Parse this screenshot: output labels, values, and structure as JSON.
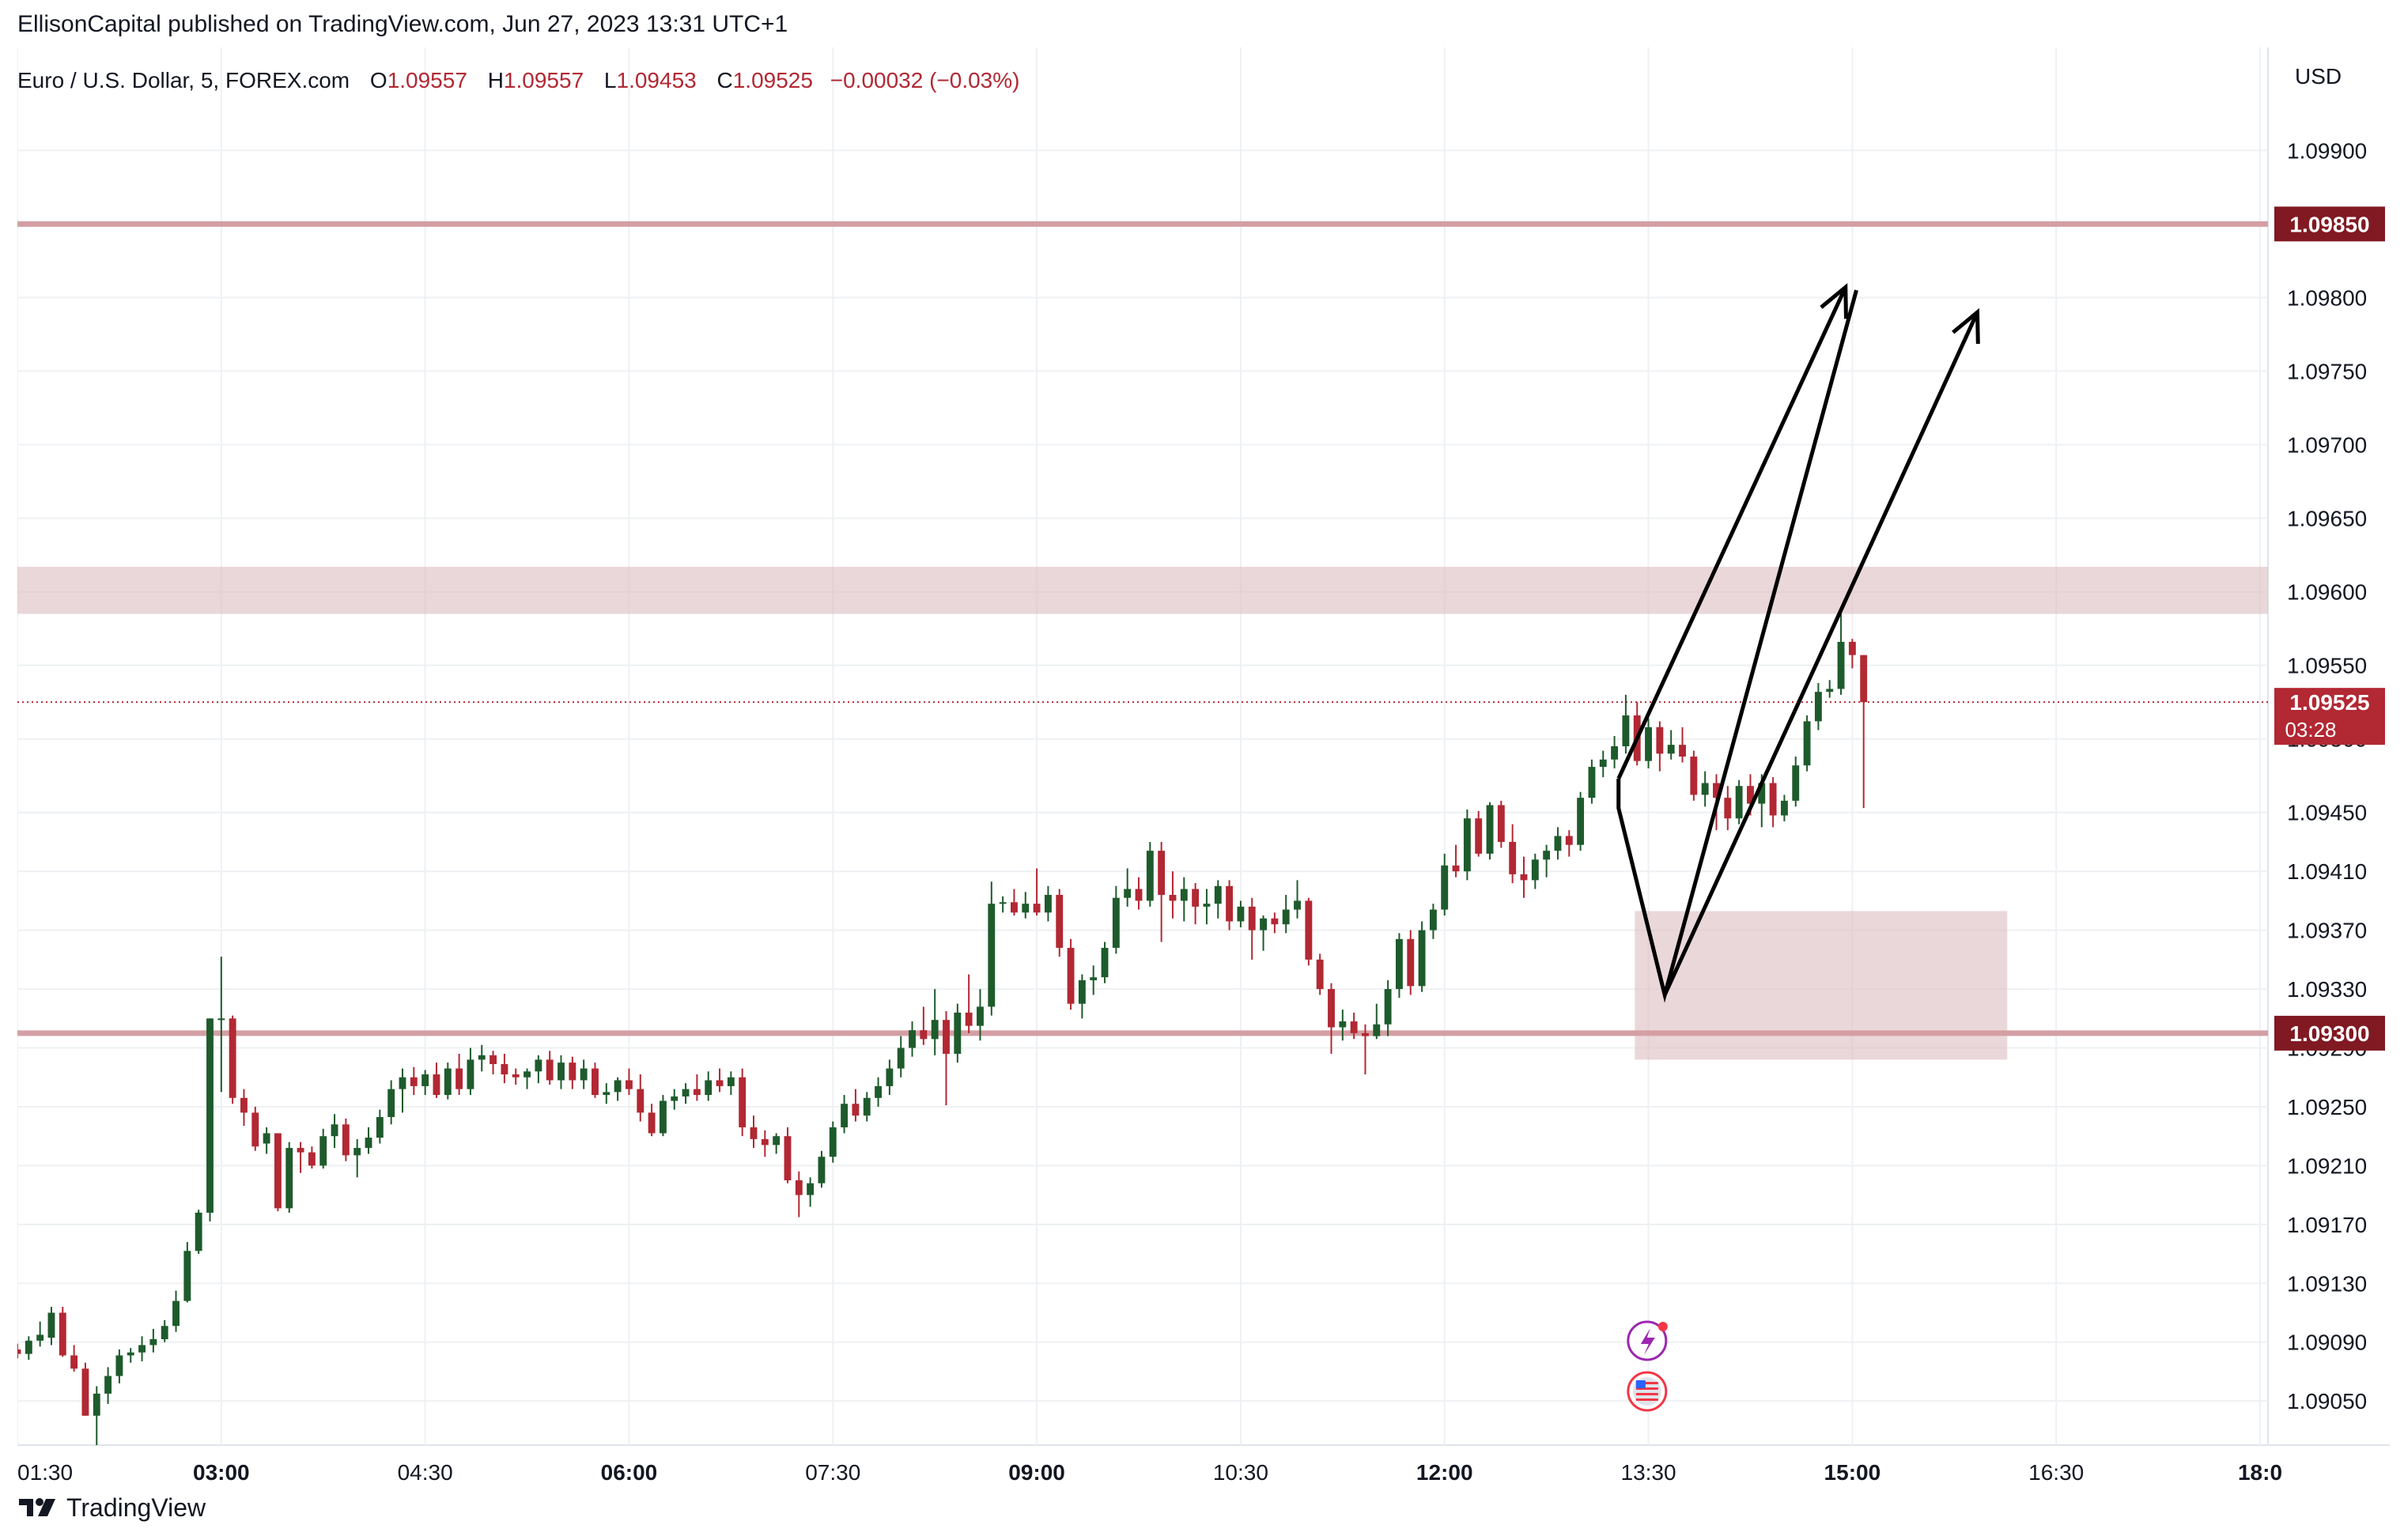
{
  "header": {
    "published_line": "EllisonCapital published on TradingView.com, Jun 27, 2023 13:31 UTC+1"
  },
  "legend": {
    "symbol": "Euro / U.S. Dollar, 5, FOREX.com",
    "o_label": "O",
    "o_value": "1.09557",
    "h_label": "H",
    "h_value": "1.09557",
    "l_label": "L",
    "l_value": "1.09453",
    "c_label": "C",
    "c_value": "1.09525",
    "change": "−0.00032 (−0.03%)"
  },
  "footer": {
    "brand": "TradingView"
  },
  "colors": {
    "up": "#1e5b2c",
    "down": "#b22833",
    "level_line": "#d49fa4",
    "zone_fill": "#dcbcc0",
    "price_tag": "#801922",
    "last_price_tag": "#b22833",
    "grid": "#eef0f3",
    "axis_text": "#131722"
  },
  "chart_data": {
    "type": "candlestick",
    "symbol": "Euro / U.S. Dollar",
    "timeframe": "5",
    "currency_label": "USD",
    "ylim": [
      1.0902,
      1.0997
    ],
    "y_ticks": [
      "1.09050",
      "1.09090",
      "1.09130",
      "1.09170",
      "1.09210",
      "1.09250",
      "1.09290",
      "1.09330",
      "1.09370",
      "1.09410",
      "1.09450",
      "1.09500",
      "1.09550",
      "1.09600",
      "1.09650",
      "1.09700",
      "1.09750",
      "1.09800",
      "1.09850",
      "1.09900"
    ],
    "x_ticks": [
      {
        "label": "01:30",
        "t": 1.5,
        "bold": false
      },
      {
        "label": "03:00",
        "t": 3.0,
        "bold": true
      },
      {
        "label": "04:30",
        "t": 4.5,
        "bold": false
      },
      {
        "label": "06:00",
        "t": 6.0,
        "bold": true
      },
      {
        "label": "07:30",
        "t": 7.5,
        "bold": false
      },
      {
        "label": "09:00",
        "t": 9.0,
        "bold": true
      },
      {
        "label": "10:30",
        "t": 10.5,
        "bold": false
      },
      {
        "label": "12:00",
        "t": 12.0,
        "bold": true
      },
      {
        "label": "13:30",
        "t": 13.5,
        "bold": false
      },
      {
        "label": "15:00",
        "t": 15.0,
        "bold": true
      },
      {
        "label": "16:30",
        "t": 16.5,
        "bold": false
      },
      {
        "label": "18:0",
        "t": 18.0,
        "bold": true
      }
    ],
    "x_range_hours": [
      1.5,
      18.0
    ],
    "candle_start_hour": 1.5,
    "candle_interval_minutes": 5,
    "candles": [
      [
        1.09085,
        1.09089,
        1.09079,
        1.09082
      ],
      [
        1.09082,
        1.09094,
        1.09078,
        1.09091
      ],
      [
        1.09091,
        1.09104,
        1.09087,
        1.09095
      ],
      [
        1.09093,
        1.09114,
        1.09088,
        1.0911
      ],
      [
        1.0911,
        1.09114,
        1.0908,
        1.09081
      ],
      [
        1.09081,
        1.09088,
        1.0907,
        1.09072
      ],
      [
        1.09072,
        1.09076,
        1.0904,
        1.0904
      ],
      [
        1.0904,
        1.0906,
        1.0902,
        1.09055
      ],
      [
        1.09055,
        1.09073,
        1.09048,
        1.09067
      ],
      [
        1.09067,
        1.09085,
        1.09062,
        1.09081
      ],
      [
        1.09081,
        1.09086,
        1.09076,
        1.09083
      ],
      [
        1.09083,
        1.09094,
        1.09077,
        1.09088
      ],
      [
        1.09088,
        1.09099,
        1.09083,
        1.09092
      ],
      [
        1.09092,
        1.09105,
        1.0909,
        1.09101
      ],
      [
        1.09101,
        1.09125,
        1.09097,
        1.09118
      ],
      [
        1.09118,
        1.09158,
        1.09117,
        1.09152
      ],
      [
        1.09152,
        1.0918,
        1.0915,
        1.09178
      ],
      [
        1.09178,
        1.0931,
        1.09172,
        1.0931
      ],
      [
        1.0931,
        1.09352,
        1.0926,
        1.0931
      ],
      [
        1.0931,
        1.09312,
        1.09252,
        1.09256
      ],
      [
        1.09256,
        1.09262,
        1.09237,
        1.09246
      ],
      [
        1.09246,
        1.0925,
        1.0922,
        1.09223
      ],
      [
        1.09225,
        1.09236,
        1.09218,
        1.09232
      ],
      [
        1.09232,
        1.09232,
        1.09179,
        1.09181
      ],
      [
        1.09181,
        1.09226,
        1.09178,
        1.09222
      ],
      [
        1.09222,
        1.09226,
        1.09205,
        1.09219
      ],
      [
        1.09219,
        1.09223,
        1.09208,
        1.0921
      ],
      [
        1.0921,
        1.09235,
        1.09208,
        1.0923
      ],
      [
        1.0923,
        1.09245,
        1.09222,
        1.09238
      ],
      [
        1.09238,
        1.09242,
        1.09213,
        1.09217
      ],
      [
        1.09217,
        1.09228,
        1.09202,
        1.09222
      ],
      [
        1.09222,
        1.09236,
        1.09218,
        1.09229
      ],
      [
        1.09229,
        1.09248,
        1.09225,
        1.09243
      ],
      [
        1.09243,
        1.09268,
        1.09238,
        1.09262
      ],
      [
        1.09262,
        1.09276,
        1.09246,
        1.0927
      ],
      [
        1.0927,
        1.09277,
        1.09258,
        1.09264
      ],
      [
        1.09264,
        1.09275,
        1.09258,
        1.09272
      ],
      [
        1.09272,
        1.0928,
        1.09256,
        1.09258
      ],
      [
        1.09258,
        1.0928,
        1.09255,
        1.09276
      ],
      [
        1.09276,
        1.09286,
        1.09258,
        1.09262
      ],
      [
        1.09262,
        1.0929,
        1.09258,
        1.09282
      ],
      [
        1.09282,
        1.09292,
        1.09274,
        1.09285
      ],
      [
        1.09285,
        1.09288,
        1.09272,
        1.09279
      ],
      [
        1.09279,
        1.09286,
        1.09266,
        1.09272
      ],
      [
        1.09272,
        1.09276,
        1.09265,
        1.0927
      ],
      [
        1.0927,
        1.09276,
        1.09262,
        1.09274
      ],
      [
        1.09274,
        1.09285,
        1.09266,
        1.09282
      ],
      [
        1.09282,
        1.09288,
        1.09265,
        1.09268
      ],
      [
        1.09268,
        1.09285,
        1.09262,
        1.0928
      ],
      [
        1.0928,
        1.09284,
        1.09262,
        1.09268
      ],
      [
        1.09268,
        1.09282,
        1.09262,
        1.09276
      ],
      [
        1.09276,
        1.0928,
        1.09256,
        1.09258
      ],
      [
        1.09258,
        1.09266,
        1.09252,
        1.0926
      ],
      [
        1.0926,
        1.0927,
        1.09254,
        1.09268
      ],
      [
        1.09268,
        1.09276,
        1.09258,
        1.09262
      ],
      [
        1.09262,
        1.09272,
        1.0924,
        1.09246
      ],
      [
        1.09246,
        1.09252,
        1.0923,
        1.09232
      ],
      [
        1.09232,
        1.09258,
        1.0923,
        1.09254
      ],
      [
        1.09254,
        1.09262,
        1.09248,
        1.09257
      ],
      [
        1.09257,
        1.09266,
        1.09252,
        1.09262
      ],
      [
        1.09262,
        1.09272,
        1.09254,
        1.09258
      ],
      [
        1.09258,
        1.09274,
        1.09254,
        1.09268
      ],
      [
        1.09268,
        1.09276,
        1.0926,
        1.09264
      ],
      [
        1.09264,
        1.09274,
        1.09258,
        1.0927
      ],
      [
        1.0927,
        1.09276,
        1.0923,
        1.09236
      ],
      [
        1.09236,
        1.09244,
        1.09222,
        1.09228
      ],
      [
        1.09228,
        1.09234,
        1.09216,
        1.09224
      ],
      [
        1.09224,
        1.09232,
        1.09218,
        1.0923
      ],
      [
        1.0923,
        1.09236,
        1.09198,
        1.092
      ],
      [
        1.092,
        1.09206,
        1.09175,
        1.0919
      ],
      [
        1.0919,
        1.09202,
        1.09182,
        1.09198
      ],
      [
        1.09198,
        1.0922,
        1.09195,
        1.09216
      ],
      [
        1.09216,
        1.0924,
        1.09212,
        1.09236
      ],
      [
        1.09236,
        1.09258,
        1.09232,
        1.09252
      ],
      [
        1.09252,
        1.09262,
        1.0924,
        1.09244
      ],
      [
        1.09244,
        1.0926,
        1.0924,
        1.09256
      ],
      [
        1.09256,
        1.0927,
        1.0925,
        1.09264
      ],
      [
        1.09264,
        1.09282,
        1.09258,
        1.09276
      ],
      [
        1.09276,
        1.09298,
        1.0927,
        1.0929
      ],
      [
        1.0929,
        1.09308,
        1.09284,
        1.09302
      ],
      [
        1.09302,
        1.09318,
        1.09292,
        1.09296
      ],
      [
        1.09296,
        1.0933,
        1.09285,
        1.09309
      ],
      [
        1.09309,
        1.09315,
        1.09251,
        1.09286
      ],
      [
        1.09286,
        1.0932,
        1.0928,
        1.09314
      ],
      [
        1.09314,
        1.0934,
        1.093,
        1.09305
      ],
      [
        1.09305,
        1.0933,
        1.09295,
        1.09318
      ],
      [
        1.09318,
        1.09403,
        1.09312,
        1.09388
      ],
      [
        1.09388,
        1.09393,
        1.09382,
        1.09389
      ],
      [
        1.09389,
        1.09398,
        1.0938,
        1.09382
      ],
      [
        1.09382,
        1.09396,
        1.09378,
        1.09388
      ],
      [
        1.09388,
        1.09412,
        1.0938,
        1.09382
      ],
      [
        1.09382,
        1.094,
        1.09376,
        1.09394
      ],
      [
        1.09394,
        1.09398,
        1.09352,
        1.09358
      ],
      [
        1.09358,
        1.09364,
        1.09316,
        1.0932
      ],
      [
        1.0932,
        1.0934,
        1.0931,
        1.09336
      ],
      [
        1.09336,
        1.09346,
        1.09326,
        1.09338
      ],
      [
        1.09338,
        1.09362,
        1.09334,
        1.09358
      ],
      [
        1.09358,
        1.094,
        1.09354,
        1.09392
      ],
      [
        1.09392,
        1.09412,
        1.09386,
        1.09398
      ],
      [
        1.09398,
        1.09406,
        1.09384,
        1.0939
      ],
      [
        1.0939,
        1.0943,
        1.09386,
        1.09424
      ],
      [
        1.09424,
        1.0943,
        1.09362,
        1.09394
      ],
      [
        1.09394,
        1.0941,
        1.09378,
        1.0939
      ],
      [
        1.0939,
        1.09406,
        1.09376,
        1.09398
      ],
      [
        1.09398,
        1.09402,
        1.09374,
        1.09386
      ],
      [
        1.09386,
        1.09398,
        1.09374,
        1.09388
      ],
      [
        1.09388,
        1.09404,
        1.09378,
        1.094
      ],
      [
        1.094,
        1.09404,
        1.0937,
        1.09376
      ],
      [
        1.09376,
        1.0939,
        1.09372,
        1.09386
      ],
      [
        1.09386,
        1.09392,
        1.0935,
        1.0937
      ],
      [
        1.0937,
        1.0938,
        1.09356,
        1.09378
      ],
      [
        1.09378,
        1.09382,
        1.09368,
        1.09374
      ],
      [
        1.09374,
        1.09394,
        1.09368,
        1.09384
      ],
      [
        1.09384,
        1.09404,
        1.09378,
        1.0939
      ],
      [
        1.0939,
        1.09392,
        1.09346,
        1.0935
      ],
      [
        1.0935,
        1.09354,
        1.09326,
        1.0933
      ],
      [
        1.0933,
        1.09334,
        1.09286,
        1.09304
      ],
      [
        1.09304,
        1.09316,
        1.09295,
        1.09308
      ],
      [
        1.09308,
        1.09314,
        1.09296,
        1.093
      ],
      [
        1.093,
        1.09306,
        1.09272,
        1.09298
      ],
      [
        1.09298,
        1.0932,
        1.09296,
        1.09306
      ],
      [
        1.09306,
        1.09336,
        1.09298,
        1.0933
      ],
      [
        1.0933,
        1.09368,
        1.09324,
        1.09364
      ],
      [
        1.09364,
        1.0937,
        1.09326,
        1.09332
      ],
      [
        1.09332,
        1.09376,
        1.09328,
        1.0937
      ],
      [
        1.0937,
        1.09388,
        1.09364,
        1.09384
      ],
      [
        1.09384,
        1.09422,
        1.0938,
        1.09414
      ],
      [
        1.09414,
        1.09428,
        1.09406,
        1.0941
      ],
      [
        1.0941,
        1.09452,
        1.09404,
        1.09446
      ],
      [
        1.09446,
        1.09451,
        1.0942,
        1.09422
      ],
      [
        1.09422,
        1.09457,
        1.09418,
        1.09455
      ],
      [
        1.09455,
        1.09458,
        1.09426,
        1.0943
      ],
      [
        1.0943,
        1.09442,
        1.09402,
        1.09408
      ],
      [
        1.09408,
        1.0942,
        1.09392,
        1.09404
      ],
      [
        1.09404,
        1.09422,
        1.09398,
        1.09418
      ],
      [
        1.09418,
        1.09428,
        1.09406,
        1.09424
      ],
      [
        1.09424,
        1.0944,
        1.09418,
        1.09434
      ],
      [
        1.09434,
        1.09438,
        1.0942,
        1.09428
      ],
      [
        1.09428,
        1.09464,
        1.09424,
        1.0946
      ],
      [
        1.0946,
        1.09486,
        1.09456,
        1.09481
      ],
      [
        1.09481,
        1.09492,
        1.09474,
        1.09486
      ],
      [
        1.09486,
        1.09502,
        1.0948,
        1.09495
      ],
      [
        1.09495,
        1.0953,
        1.0949,
        1.09516
      ],
      [
        1.09516,
        1.09525,
        1.09482,
        1.09485
      ],
      [
        1.09485,
        1.09514,
        1.0948,
        1.09508
      ],
      [
        1.09508,
        1.09512,
        1.09478,
        1.0949
      ],
      [
        1.0949,
        1.09506,
        1.09486,
        1.09496
      ],
      [
        1.09496,
        1.09508,
        1.09484,
        1.09488
      ],
      [
        1.09488,
        1.09492,
        1.09458,
        1.09462
      ],
      [
        1.09462,
        1.09478,
        1.09454,
        1.0947
      ],
      [
        1.0947,
        1.09476,
        1.09438,
        1.0946
      ],
      [
        1.0946,
        1.09468,
        1.09438,
        1.09446
      ],
      [
        1.09446,
        1.09472,
        1.09442,
        1.09468
      ],
      [
        1.09468,
        1.09476,
        1.09448,
        1.09456
      ],
      [
        1.09456,
        1.09476,
        1.0944,
        1.0947
      ],
      [
        1.0947,
        1.09474,
        1.0944,
        1.09448
      ],
      [
        1.09448,
        1.09462,
        1.09444,
        1.09458
      ],
      [
        1.09458,
        1.09488,
        1.09454,
        1.09482
      ],
      [
        1.09482,
        1.09516,
        1.09478,
        1.09512
      ],
      [
        1.09512,
        1.09538,
        1.09506,
        1.09532
      ],
      [
        1.09532,
        1.0954,
        1.09528,
        1.09534
      ],
      [
        1.09534,
        1.0959,
        1.0953,
        1.09566
      ],
      [
        1.09566,
        1.09568,
        1.09548,
        1.09557
      ],
      [
        1.09557,
        1.09557,
        1.09453,
        1.09525
      ]
    ],
    "horizontal_levels": [
      1.0985,
      1.093
    ],
    "zones": [
      {
        "y_from": 1.09585,
        "y_to": 1.09617,
        "t_from": 1.5,
        "t_to": 18.0
      },
      {
        "y_from": 1.09282,
        "y_to": 1.09383,
        "t_from": 13.4,
        "t_to": 16.14
      }
    ],
    "projection_path": [
      [
        13.28,
        1.09473
      ],
      [
        13.28,
        1.09453
      ],
      [
        13.62,
        1.09326
      ],
      [
        15.03,
        1.09805
      ]
    ],
    "projection_arrows": [
      {
        "from": [
          13.28,
          1.09473
        ],
        "to": [
          14.95,
          1.09807
        ]
      },
      {
        "from": [
          13.62,
          1.09326
        ],
        "to": [
          15.92,
          1.0979
        ]
      }
    ],
    "last_price": "1.09525",
    "countdown": "03:28",
    "level_tags": [
      "1.09850",
      "1.09300"
    ],
    "hidden_tick_labels": [
      "1.09500",
      "1.09290"
    ]
  }
}
